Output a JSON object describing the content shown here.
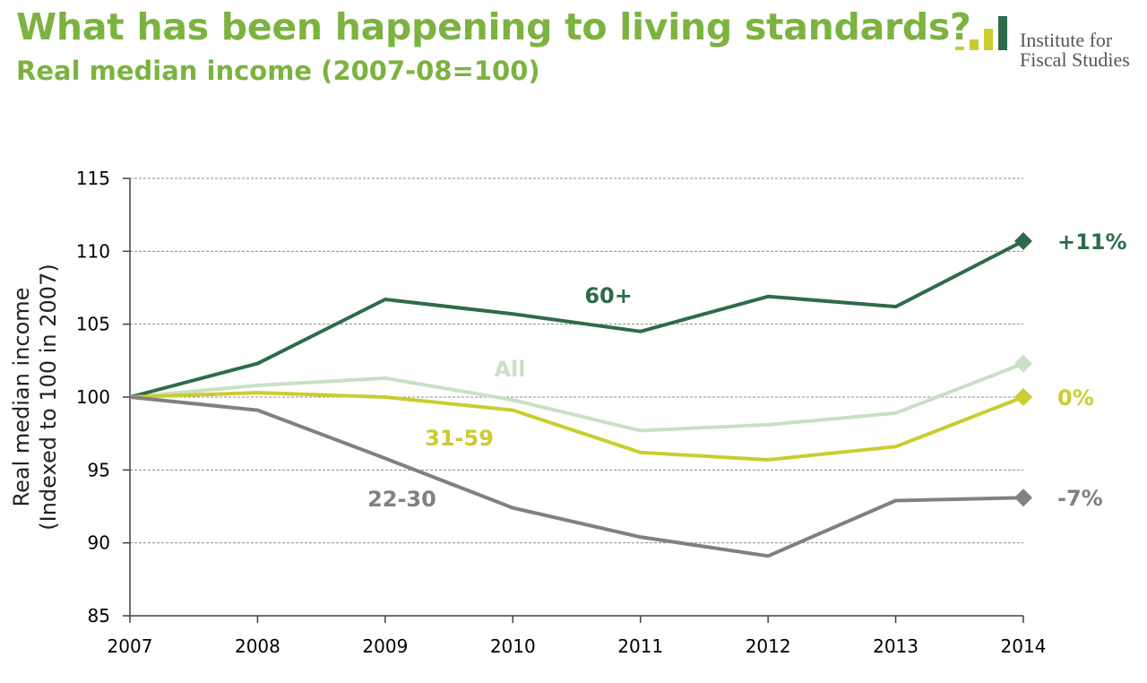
{
  "header": {
    "title": "What has been happening to living standards?",
    "subtitle": "Real median income (2007-08=100)"
  },
  "logo": {
    "line1": "Institute for",
    "line2": "Fiscal Studies"
  },
  "colors": {
    "sixty_plus": "#2f6b4a",
    "all": "#c8e0c4",
    "thirty_one_59": "#cbcc2e",
    "twenty_two_30": "#808080",
    "title": "#7cb23f",
    "logo_yellow": "#cbcc2e",
    "logo_green": "#2f6b4a"
  },
  "chart_data": {
    "type": "line",
    "title": "What has been happening to living standards?",
    "subtitle": "Real median income (2007-08=100)",
    "xlabel": "",
    "ylabel": "Real median income\n(Indexed to 100 in 2007)",
    "ylabel_line1": "Real median income",
    "ylabel_line2": "(Indexed to 100 in 2007)",
    "x": [
      "2007",
      "2008",
      "2009",
      "2010",
      "2011",
      "2012",
      "2013",
      "2014"
    ],
    "ylim": [
      85,
      115
    ],
    "yticks": [
      85,
      90,
      95,
      100,
      105,
      110,
      115
    ],
    "grid": true,
    "series": [
      {
        "name": "All",
        "values": [
          100,
          100.8,
          101.3,
          99.8,
          97.7,
          98.1,
          98.9,
          102.3
        ],
        "end_label": ""
      },
      {
        "name": "60+",
        "values": [
          100,
          102.3,
          106.7,
          105.7,
          104.5,
          106.9,
          106.2,
          110.7
        ],
        "end_label": "+11%"
      },
      {
        "name": "31-59",
        "values": [
          100,
          100.3,
          100,
          99.1,
          96.2,
          95.7,
          96.6,
          100
        ],
        "end_label": "0%"
      },
      {
        "name": "22-30",
        "values": [
          100,
          99.1,
          95.8,
          92.4,
          90.4,
          89.1,
          92.9,
          93.1
        ],
        "end_label": "-7%"
      }
    ]
  }
}
